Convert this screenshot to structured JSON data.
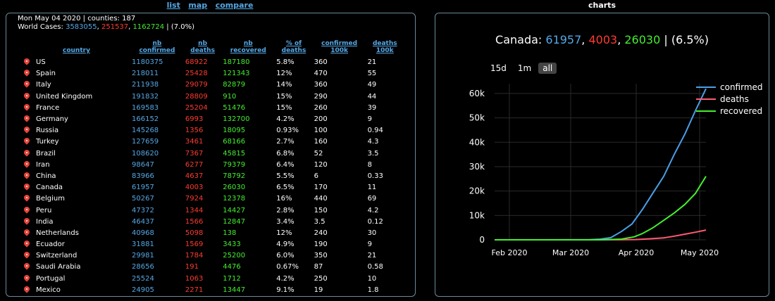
{
  "nav": {
    "list": "list",
    "map": "map",
    "compare": "compare",
    "charts": "charts"
  },
  "summary": {
    "date_line": "Mon May 04 2020 | counties: 187",
    "world_label": "World Cases:",
    "world_confirmed": "3583055",
    "world_deaths": "251537",
    "world_recovered": "1162724",
    "world_pct": "| (7.0%)"
  },
  "table": {
    "headers": {
      "country": "country",
      "confirmed_1": "nb",
      "confirmed_2": "confirmed",
      "deaths_1": "nb",
      "deaths_2": "deaths",
      "recovered_1": "nb",
      "recovered_2": "recovered",
      "pct_1": "% of",
      "pct_2": "deaths",
      "c100_1": "confirmed",
      "c100_2": "100k",
      "d100_1": "deaths",
      "d100_2": "100k"
    },
    "rows": [
      {
        "country": "US",
        "confirmed": "1180375",
        "deaths": "68922",
        "recovered": "187180",
        "pct": "5.8%",
        "c100": "360",
        "d100": "21"
      },
      {
        "country": "Spain",
        "confirmed": "218011",
        "deaths": "25428",
        "recovered": "121343",
        "pct": "12%",
        "c100": "470",
        "d100": "55"
      },
      {
        "country": "Italy",
        "confirmed": "211938",
        "deaths": "29079",
        "recovered": "82879",
        "pct": "14%",
        "c100": "360",
        "d100": "49"
      },
      {
        "country": "United Kingdom",
        "confirmed": "191832",
        "deaths": "28809",
        "recovered": "910",
        "pct": "15%",
        "c100": "290",
        "d100": "44"
      },
      {
        "country": "France",
        "confirmed": "169583",
        "deaths": "25204",
        "recovered": "51476",
        "pct": "15%",
        "c100": "260",
        "d100": "39"
      },
      {
        "country": "Germany",
        "confirmed": "166152",
        "deaths": "6993",
        "recovered": "132700",
        "pct": "4.2%",
        "c100": "200",
        "d100": "9"
      },
      {
        "country": "Russia",
        "confirmed": "145268",
        "deaths": "1356",
        "recovered": "18095",
        "pct": "0.93%",
        "c100": "100",
        "d100": "0.94"
      },
      {
        "country": "Turkey",
        "confirmed": "127659",
        "deaths": "3461",
        "recovered": "68166",
        "pct": "2.7%",
        "c100": "160",
        "d100": "4.3"
      },
      {
        "country": "Brazil",
        "confirmed": "108620",
        "deaths": "7367",
        "recovered": "45815",
        "pct": "6.8%",
        "c100": "52",
        "d100": "3.5"
      },
      {
        "country": "Iran",
        "confirmed": "98647",
        "deaths": "6277",
        "recovered": "79379",
        "pct": "6.4%",
        "c100": "120",
        "d100": "8"
      },
      {
        "country": "China",
        "confirmed": "83966",
        "deaths": "4637",
        "recovered": "78792",
        "pct": "5.5%",
        "c100": "6",
        "d100": "0.33"
      },
      {
        "country": "Canada",
        "confirmed": "61957",
        "deaths": "4003",
        "recovered": "26030",
        "pct": "6.5%",
        "c100": "170",
        "d100": "11"
      },
      {
        "country": "Belgium",
        "confirmed": "50267",
        "deaths": "7924",
        "recovered": "12378",
        "pct": "16%",
        "c100": "440",
        "d100": "69"
      },
      {
        "country": "Peru",
        "confirmed": "47372",
        "deaths": "1344",
        "recovered": "14427",
        "pct": "2.8%",
        "c100": "150",
        "d100": "4.2"
      },
      {
        "country": "India",
        "confirmed": "46437",
        "deaths": "1566",
        "recovered": "12847",
        "pct": "3.4%",
        "c100": "3.5",
        "d100": "0.12"
      },
      {
        "country": "Netherlands",
        "confirmed": "40968",
        "deaths": "5098",
        "recovered": "138",
        "pct": "12%",
        "c100": "240",
        "d100": "30"
      },
      {
        "country": "Ecuador",
        "confirmed": "31881",
        "deaths": "1569",
        "recovered": "3433",
        "pct": "4.9%",
        "c100": "190",
        "d100": "9"
      },
      {
        "country": "Switzerland",
        "confirmed": "29981",
        "deaths": "1784",
        "recovered": "25200",
        "pct": "6.0%",
        "c100": "350",
        "d100": "21"
      },
      {
        "country": "Saudi Arabia",
        "confirmed": "28656",
        "deaths": "191",
        "recovered": "4476",
        "pct": "0.67%",
        "c100": "87",
        "d100": "0.58"
      },
      {
        "country": "Portugal",
        "confirmed": "25524",
        "deaths": "1063",
        "recovered": "1712",
        "pct": "4.2%",
        "c100": "250",
        "d100": "10"
      },
      {
        "country": "Mexico",
        "confirmed": "24905",
        "deaths": "2271",
        "recovered": "13447",
        "pct": "9.1%",
        "c100": "19",
        "d100": "1.8"
      }
    ]
  },
  "chart": {
    "title_country": "Canada:",
    "title_confirmed": "61957",
    "title_deaths": "4003",
    "title_recovered": "26030",
    "title_pct": "| (6.5%)",
    "range_buttons": [
      "15d",
      "1m",
      "all"
    ],
    "active_range": "all"
  },
  "chart_data": {
    "type": "line",
    "x_unit": "date",
    "xlim": [
      "2020-01-25",
      "2020-05-04"
    ],
    "ylim": [
      0,
      64000
    ],
    "x_ticks": [
      {
        "date": "2020-02-01",
        "label": "Feb 2020"
      },
      {
        "date": "2020-03-01",
        "label": "Mar 2020"
      },
      {
        "date": "2020-04-01",
        "label": "Apr 2020"
      },
      {
        "date": "2020-05-01",
        "label": "May 2020"
      }
    ],
    "y_ticks": [
      0,
      10000,
      20000,
      30000,
      40000,
      50000,
      60000
    ],
    "y_tick_labels": [
      "0",
      "10k",
      "20k",
      "30k",
      "40k",
      "50k",
      "60k"
    ],
    "legend_position": "top-right",
    "grid": true,
    "series": [
      {
        "name": "confirmed",
        "color": "#4a9fe8",
        "points": [
          [
            "2020-01-25",
            0
          ],
          [
            "2020-03-01",
            20
          ],
          [
            "2020-03-10",
            80
          ],
          [
            "2020-03-15",
            300
          ],
          [
            "2020-03-20",
            900
          ],
          [
            "2020-03-25",
            3400
          ],
          [
            "2020-03-30",
            6500
          ],
          [
            "2020-04-04",
            12500
          ],
          [
            "2020-04-09",
            19300
          ],
          [
            "2020-04-14",
            26000
          ],
          [
            "2020-04-19",
            35000
          ],
          [
            "2020-04-24",
            43300
          ],
          [
            "2020-04-29",
            52900
          ],
          [
            "2020-05-04",
            61957
          ]
        ]
      },
      {
        "name": "deaths",
        "color": "#ff5a73",
        "points": [
          [
            "2020-01-25",
            0
          ],
          [
            "2020-03-10",
            0
          ],
          [
            "2020-03-25",
            30
          ],
          [
            "2020-04-01",
            110
          ],
          [
            "2020-04-09",
            500
          ],
          [
            "2020-04-14",
            800
          ],
          [
            "2020-04-19",
            1500
          ],
          [
            "2020-04-24",
            2300
          ],
          [
            "2020-04-29",
            3100
          ],
          [
            "2020-05-04",
            4003
          ]
        ]
      },
      {
        "name": "recovered",
        "color": "#44ef2e",
        "points": [
          [
            "2020-01-25",
            0
          ],
          [
            "2020-03-15",
            10
          ],
          [
            "2020-03-25",
            300
          ],
          [
            "2020-03-31",
            1200
          ],
          [
            "2020-04-04",
            2600
          ],
          [
            "2020-04-09",
            5000
          ],
          [
            "2020-04-14",
            8000
          ],
          [
            "2020-04-19",
            11000
          ],
          [
            "2020-04-24",
            14500
          ],
          [
            "2020-04-29",
            19000
          ],
          [
            "2020-05-04",
            26030
          ]
        ]
      }
    ]
  }
}
